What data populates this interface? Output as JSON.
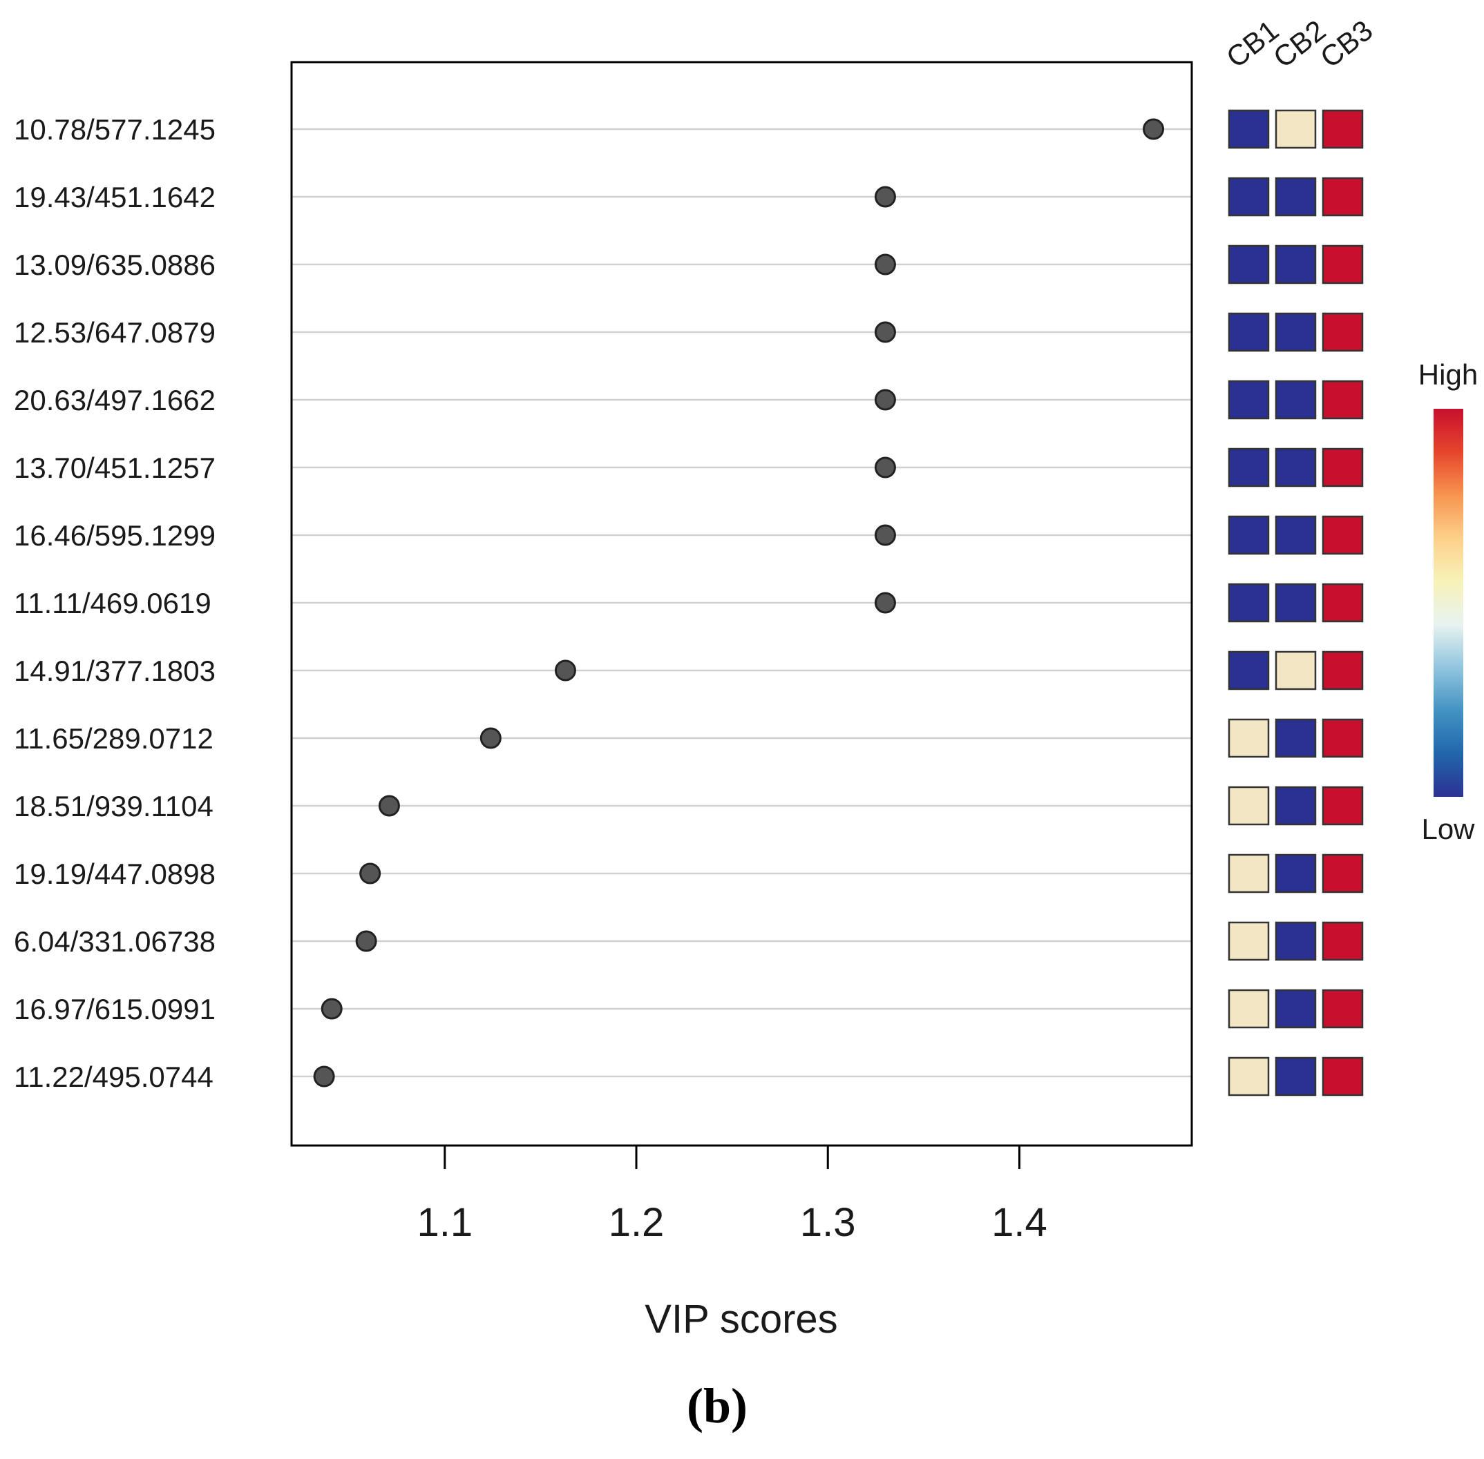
{
  "chart_data": {
    "type": "scatter",
    "subtype": "dot-plot",
    "xlabel": "VIP scores",
    "xlim": [
      1.02,
      1.49
    ],
    "xticks": [
      1.1,
      1.2,
      1.3,
      1.4
    ],
    "xtick_labels": [
      "1.1",
      "1.2",
      "1.3",
      "1.4"
    ],
    "features": [
      {
        "label": "10.78/577.1245",
        "vip": 1.47,
        "levels": [
          "low",
          "mid",
          "high"
        ]
      },
      {
        "label": "19.43/451.1642",
        "vip": 1.33,
        "levels": [
          "low",
          "low",
          "high"
        ]
      },
      {
        "label": "13.09/635.0886",
        "vip": 1.33,
        "levels": [
          "low",
          "low",
          "high"
        ]
      },
      {
        "label": "12.53/647.0879",
        "vip": 1.33,
        "levels": [
          "low",
          "low",
          "high"
        ]
      },
      {
        "label": "20.63/497.1662",
        "vip": 1.33,
        "levels": [
          "low",
          "low",
          "high"
        ]
      },
      {
        "label": "13.70/451.1257",
        "vip": 1.33,
        "levels": [
          "low",
          "low",
          "high"
        ]
      },
      {
        "label": "16.46/595.1299",
        "vip": 1.33,
        "levels": [
          "low",
          "low",
          "high"
        ]
      },
      {
        "label": "11.11/469.0619",
        "vip": 1.33,
        "levels": [
          "low",
          "low",
          "high"
        ]
      },
      {
        "label": "14.91/377.1803",
        "vip": 1.163,
        "levels": [
          "low",
          "mid",
          "high"
        ]
      },
      {
        "label": "11.65/289.0712",
        "vip": 1.124,
        "levels": [
          "mid",
          "low",
          "high"
        ]
      },
      {
        "label": "18.51/939.1104",
        "vip": 1.071,
        "levels": [
          "mid",
          "low",
          "high"
        ]
      },
      {
        "label": "19.19/447.0898",
        "vip": 1.061,
        "levels": [
          "mid",
          "low",
          "high"
        ]
      },
      {
        "label": "6.04/331.06738",
        "vip": 1.059,
        "levels": [
          "mid",
          "low",
          "high"
        ]
      },
      {
        "label": "16.97/615.0991",
        "vip": 1.041,
        "levels": [
          "mid",
          "low",
          "high"
        ]
      },
      {
        "label": "11.22/495.0744",
        "vip": 1.037,
        "levels": [
          "mid",
          "low",
          "high"
        ]
      }
    ],
    "heatmap_columns": [
      "CB1",
      "CB2",
      "CB3"
    ],
    "legend": {
      "high": "High",
      "low": "Low"
    },
    "panel_label": "(b)"
  },
  "colors": {
    "low": "#2b3192",
    "mid": "#f2e6c4",
    "high": "#c8102e",
    "dot_fill": "#555555",
    "dot_stroke": "#222222",
    "gridline": "#d0d0d0",
    "frame": "#000000",
    "colormap": [
      "#2b3192",
      "#2166ac",
      "#4393c3",
      "#92c5de",
      "#e8f3f0",
      "#f7f2b8",
      "#fdd08a",
      "#f7944f",
      "#e6452c",
      "#c8102e"
    ]
  }
}
